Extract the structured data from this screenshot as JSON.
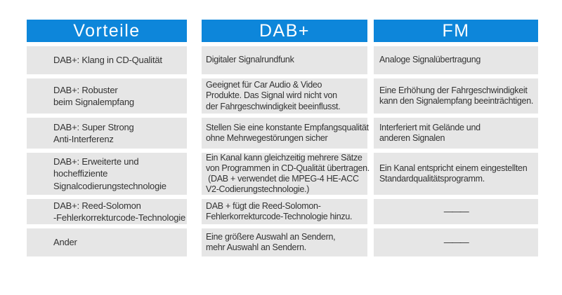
{
  "table": {
    "columns": [
      {
        "key": "vorteile",
        "title": "Vorteile"
      },
      {
        "key": "dab",
        "title": "DAB+"
      },
      {
        "key": "fm",
        "title": "FM"
      }
    ],
    "rows": [
      {
        "vorteile": "DAB+: Klang in CD-Qualität",
        "dab": "Digitaler Signalrundfunk",
        "fm": "Analoge Signalübertragung"
      },
      {
        "vorteile": "DAB+: Robuster\nbeim Signalempfang",
        "dab": "Geeignet für Car Audio & Video\nProdukte. Das Signal wird nicht von\nder Fahrgeschwindigkeit beeinflusst.",
        "fm": "Eine Erhöhung der Fahrgeschwindigkeit\nkann den Signalempfang beeinträchtigen."
      },
      {
        "vorteile": "DAB+: Super Strong\nAnti-Interferenz",
        "dab": "Stellen Sie eine konstante Empfangsqualität\nohne Mehrwegestörungen sicher",
        "fm": "Interferiert mit Gelände und\nanderen Signalen"
      },
      {
        "vorteile": "DAB+: Erweiterte und\nhocheffiziente\nSignalcodierungstechnologie",
        "dab": "Ein Kanal kann gleichzeitig mehrere Sätze\nvon Programmen in CD-Qualität übertragen.\n (DAB + verwendet die MPEG-4 HE-ACC\nV2-Codierungstechnologie.)",
        "fm": "Ein Kanal entspricht einem eingestellten\nStandardqualitätsprogramm."
      },
      {
        "vorteile": "DAB+: Reed-Solomon\n-Fehlerkorrekturcode-Technologie",
        "dab": "DAB + fügt die Reed-Solomon-\nFehlerkorrekturcode-Technologie hinzu.",
        "fm": "———"
      },
      {
        "vorteile": "Ander",
        "dab": "Eine größere Auswahl an Sendern,\nmehr Auswahl an Sendern.",
        "fm": "———"
      }
    ]
  },
  "colors": {
    "header_bg": "#0d86da",
    "header_text": "#ffffff",
    "cell_bg": "#e6e6e6",
    "body_text": "#333333",
    "dash_color": "#2b2b2b"
  }
}
